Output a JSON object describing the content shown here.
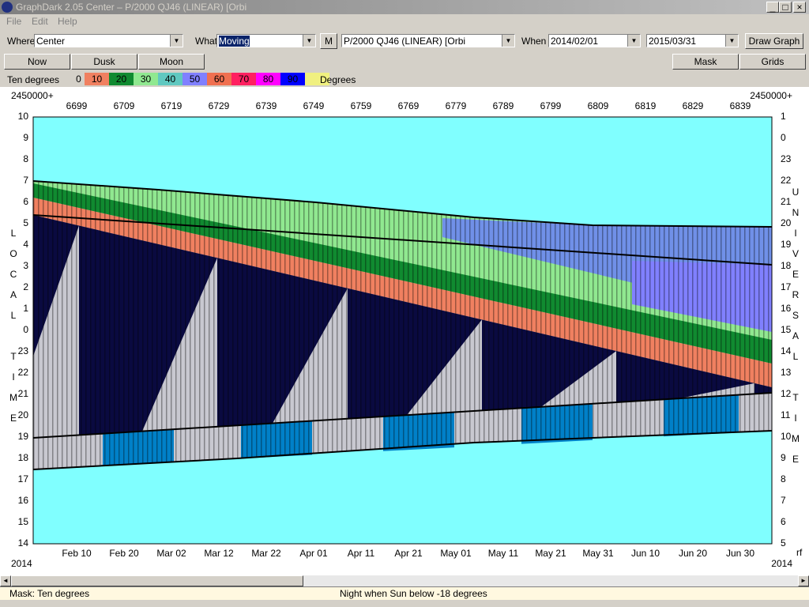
{
  "window": {
    "title": "GraphDark 2.05  Center  –  P/2000 QJ46 (LINEAR) [Orbi"
  },
  "menu": [
    "File",
    "Edit",
    "Help"
  ],
  "toolbar": {
    "where_label": "Where",
    "where": "Center",
    "what_label": "What",
    "what": "Moving",
    "m_button": "M",
    "object": "P/2000 QJ46 (LINEAR) [Orbi",
    "when_label": "When",
    "start": "2014/02/01",
    "end": "2015/03/31",
    "draw": "Draw Graph"
  },
  "buttons": {
    "now": "Now",
    "dusk": "Dusk",
    "moon": "Moon",
    "mask": "Mask",
    "grids": "Grids"
  },
  "legend": {
    "title": "Ten degrees",
    "unit": "Degrees",
    "items": [
      {
        "label": "0",
        "color": "#d4d0c8"
      },
      {
        "label": "10",
        "color": "#f08060"
      },
      {
        "label": "20",
        "color": "#108a30"
      },
      {
        "label": "30",
        "color": "#90e890"
      },
      {
        "label": "40",
        "color": "#60c8c0"
      },
      {
        "label": "50",
        "color": "#8080ff"
      },
      {
        "label": "60",
        "color": "#f07050"
      },
      {
        "label": "70",
        "color": "#ff2060"
      },
      {
        "label": "80",
        "color": "#ff00ff"
      },
      {
        "label": "90",
        "color": "#0000ff"
      },
      {
        "label": "",
        "color": "#f0f080"
      }
    ]
  },
  "graph": {
    "jd_prefix": "2450000+",
    "jd_ticks": [
      6699,
      6709,
      6719,
      6729,
      6739,
      6749,
      6759,
      6769,
      6779,
      6789,
      6799,
      6809,
      6819,
      6829,
      6839
    ],
    "local_label": "LOCAL TIME",
    "local_ticks": [
      10,
      9,
      8,
      7,
      6,
      5,
      4,
      3,
      2,
      1,
      0,
      23,
      22,
      21,
      20,
      19,
      18,
      17,
      16,
      15,
      14
    ],
    "ut_label": "UNIVERSAL TIME",
    "ut_ticks": [
      1,
      0,
      23,
      22,
      21,
      20,
      19,
      18,
      17,
      16,
      15,
      14,
      13,
      12,
      11,
      10,
      9,
      8,
      7,
      6,
      5
    ],
    "date_ticks": [
      "Feb 10",
      "Feb 20",
      "Mar 02",
      "Mar 12",
      "Mar 22",
      "Apr 01",
      "Apr 11",
      "Apr 21",
      "May 01",
      "May 11",
      "May 21",
      "May 31",
      "Jun 10",
      "Jun 20",
      "Jun 30"
    ],
    "year_left": "2014",
    "year_right": "2014",
    "corner": "rf"
  },
  "status": {
    "mask": "Mask:  Ten degrees",
    "night": "Night when Sun below -18 degrees"
  }
}
